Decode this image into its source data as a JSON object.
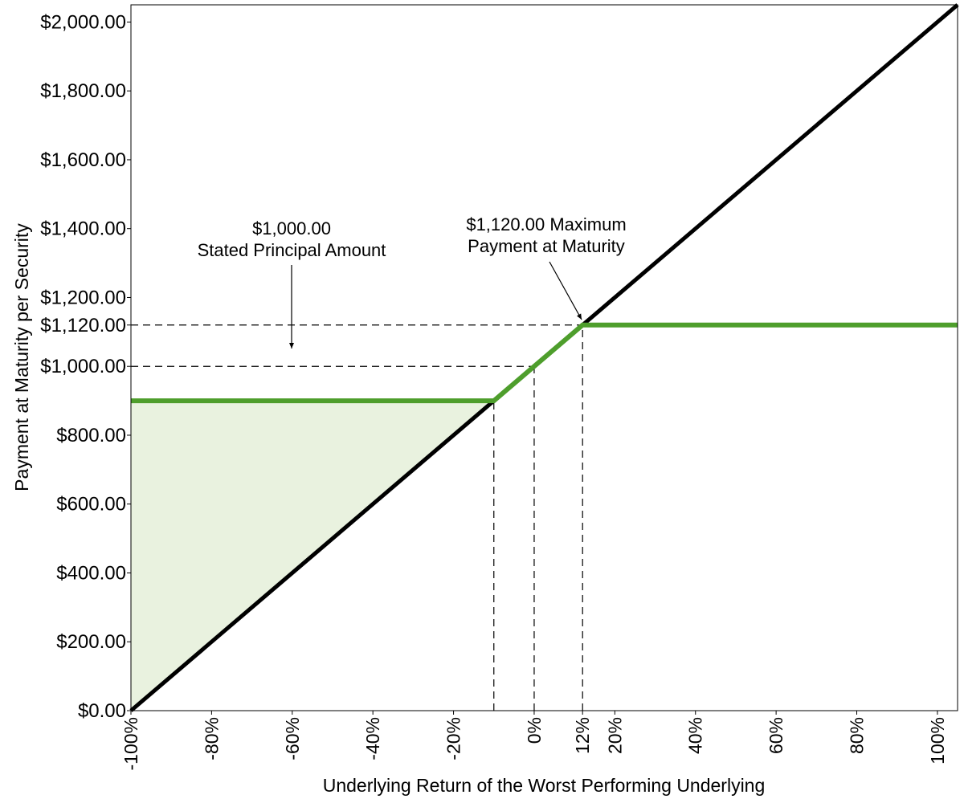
{
  "chart_data": {
    "type": "line",
    "x_label": "Underlying Return of the Worst Performing Underlying",
    "y_label": "Payment at Maturity per Security",
    "xlim": [
      -100,
      105
    ],
    "ylim": [
      0,
      2050
    ],
    "xticks": [
      {
        "value": -100,
        "label": "-100%"
      },
      {
        "value": -80,
        "label": "-80%"
      },
      {
        "value": -60,
        "label": "-60%"
      },
      {
        "value": -40,
        "label": "-40%"
      },
      {
        "value": -20,
        "label": "-20%"
      },
      {
        "value": 0,
        "label": "0%"
      },
      {
        "value": 12,
        "label": "12%"
      },
      {
        "value": 20,
        "label": "20%"
      },
      {
        "value": 40,
        "label": "40%"
      },
      {
        "value": 60,
        "label": "60%"
      },
      {
        "value": 80,
        "label": "80%"
      },
      {
        "value": 100,
        "label": "100%"
      }
    ],
    "yticks": [
      {
        "value": 0,
        "label": "$0.00"
      },
      {
        "value": 200,
        "label": "$200.00"
      },
      {
        "value": 400,
        "label": "$400.00"
      },
      {
        "value": 600,
        "label": "$600.00"
      },
      {
        "value": 800,
        "label": "$800.00"
      },
      {
        "value": 1000,
        "label": "$1,000.00"
      },
      {
        "value": 1120,
        "label": "$1,120.00"
      },
      {
        "value": 1200,
        "label": "$1,200.00"
      },
      {
        "value": 1400,
        "label": "$1,400.00"
      },
      {
        "value": 1600,
        "label": "$1,600.00"
      },
      {
        "value": 1800,
        "label": "$1,800.00"
      },
      {
        "value": 2000,
        "label": "$2,000.00"
      }
    ],
    "area": {
      "color": "#e9f2df",
      "x": [
        -100,
        -10,
        -100
      ],
      "values": [
        900,
        900,
        0
      ]
    },
    "series": [
      {
        "color": "#000000",
        "x": [
          -100,
          105
        ],
        "values": [
          0,
          2050
        ]
      },
      {
        "color": "#4e9e2c",
        "x": [
          -100,
          -10,
          12,
          105
        ],
        "values": [
          900,
          900,
          1120,
          1120
        ]
      }
    ],
    "reference_lines": [
      {
        "x": [
          -100,
          12
        ],
        "values": [
          1120,
          1120
        ]
      },
      {
        "x": [
          -100,
          0
        ],
        "values": [
          1000,
          1000
        ]
      },
      {
        "x": [
          -10,
          -10
        ],
        "values": [
          0,
          900
        ]
      },
      {
        "x": [
          0,
          0
        ],
        "values": [
          0,
          1000
        ]
      },
      {
        "x": [
          12,
          12
        ],
        "values": [
          0,
          1120
        ]
      }
    ],
    "annotations": [
      {
        "lines": [
          "$1,000.00",
          "Stated Principal Amount"
        ]
      },
      {
        "lines": [
          "$1,120.00 Maximum",
          "Payment at Maturity"
        ]
      }
    ]
  }
}
